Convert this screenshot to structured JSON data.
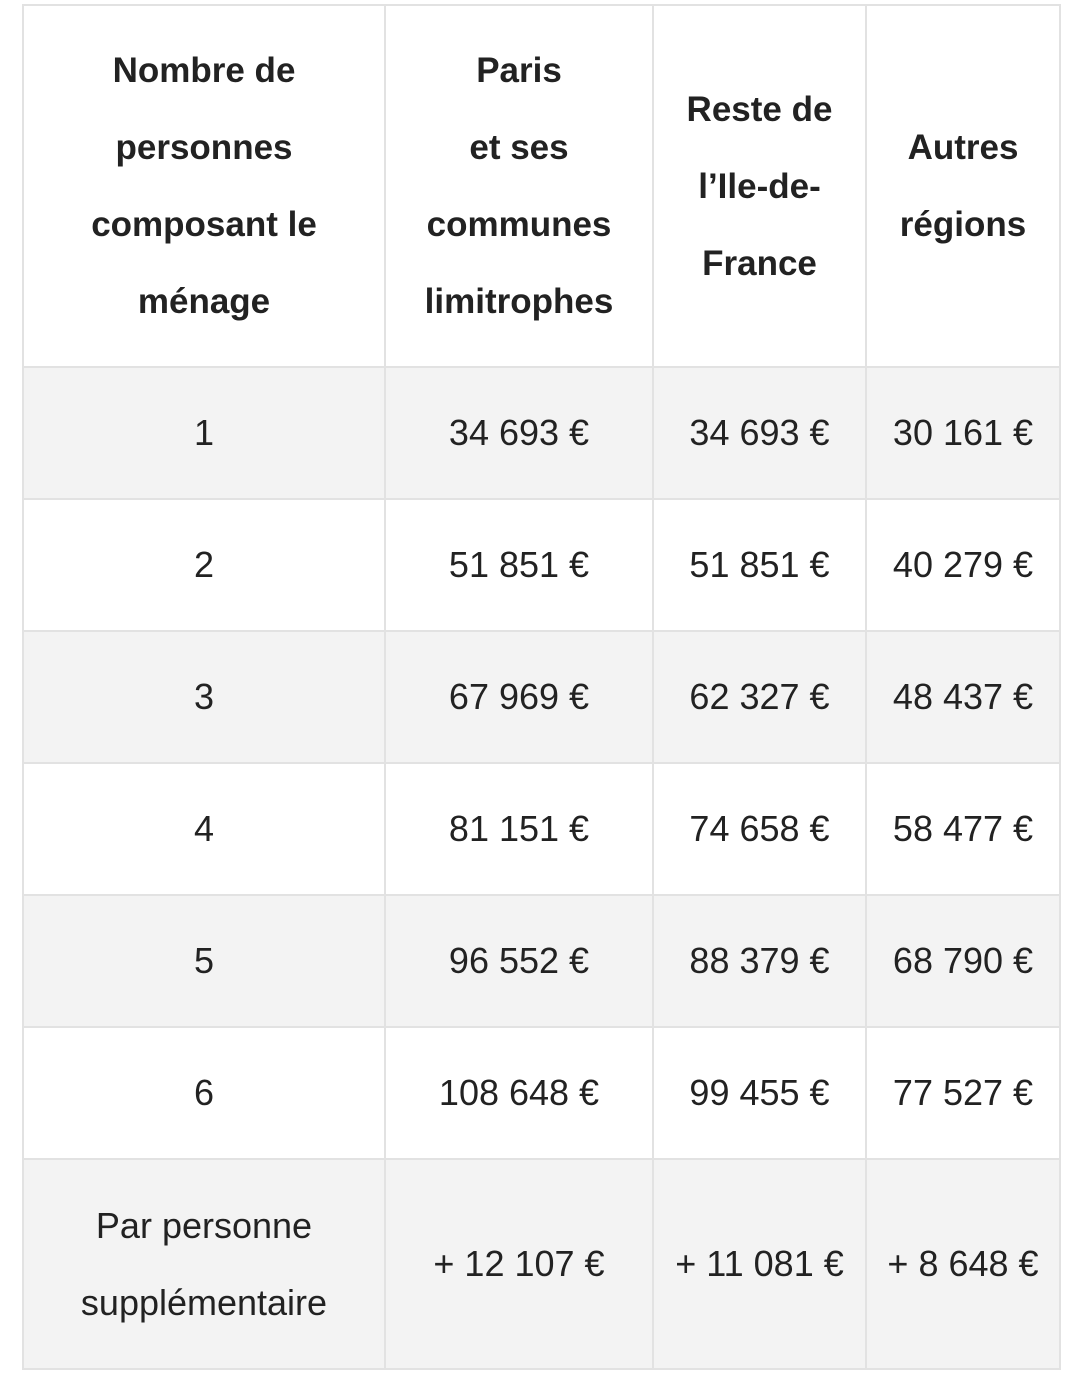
{
  "table": {
    "headers": [
      [
        "Nombre de",
        "personnes",
        "composant le",
        "ménage"
      ],
      [
        "Paris",
        "et ses",
        "communes",
        "limitrophes"
      ],
      [
        "Reste de",
        "l’Ile-de-",
        "France"
      ],
      [
        "Autres",
        "régions"
      ]
    ],
    "rows": [
      [
        "1",
        "34 693 €",
        "34 693 €",
        "30 161 €"
      ],
      [
        "2",
        "51 851 €",
        "51 851 €",
        "40 279 €"
      ],
      [
        "3",
        "67 969 €",
        "62 327 €",
        "48 437 €"
      ],
      [
        "4",
        "81 151 €",
        "74 658 €",
        "58 477 €"
      ],
      [
        "5",
        "96 552 €",
        "88 379 €",
        "68 790 €"
      ],
      [
        "6",
        "108 648 €",
        "99 455 €",
        "77 527 €"
      ],
      [
        [
          "Par personne",
          "supplémentaire"
        ],
        "+ 12 107 €",
        "+ 11 081 €",
        "+ 8 648 €"
      ]
    ]
  }
}
